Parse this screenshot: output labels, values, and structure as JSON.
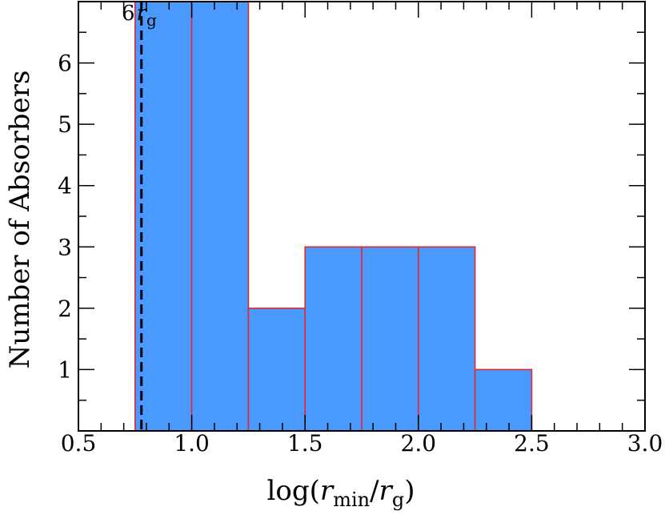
{
  "chart_data": {
    "type": "bar",
    "histogram": true,
    "bins": [
      {
        "x0": 0.75,
        "x1": 1.0,
        "count": 7
      },
      {
        "x0": 1.0,
        "x1": 1.25,
        "count": 7
      },
      {
        "x0": 1.25,
        "x1": 1.5,
        "count": 2
      },
      {
        "x0": 1.5,
        "x1": 1.75,
        "count": 3
      },
      {
        "x0": 1.75,
        "x1": 2.0,
        "count": 3
      },
      {
        "x0": 2.0,
        "x1": 2.25,
        "count": 3
      },
      {
        "x0": 2.25,
        "x1": 2.5,
        "count": 1
      }
    ],
    "xlabel": {
      "main": "log(",
      "r1": "r",
      "sub1": "min",
      "slash": "/",
      "r2": "r",
      "sub2": "g",
      "close": ")"
    },
    "ylabel": "Number of Absorbers",
    "xlim": [
      0.5,
      3.0
    ],
    "ylim": [
      0,
      7.0
    ],
    "xticks": [
      "0.5",
      "1.0",
      "1.5",
      "2.0",
      "2.5",
      "3.0"
    ],
    "xtick_values": [
      0.5,
      1.0,
      1.5,
      2.0,
      2.5,
      3.0
    ],
    "xminor_step": 0.1,
    "yticks": [
      "1",
      "2",
      "3",
      "4",
      "5",
      "6"
    ],
    "ytick_values": [
      1,
      2,
      3,
      4,
      5,
      6
    ],
    "yminor_step": 0.5,
    "reference_line": {
      "x": 0.778,
      "label_num": "6",
      "label_r": "r",
      "label_sub": "g"
    },
    "colors": {
      "bar_fill": "#4A99FF",
      "bar_edge": "#E0282E",
      "ref_line": "#000000"
    },
    "grid": false
  }
}
